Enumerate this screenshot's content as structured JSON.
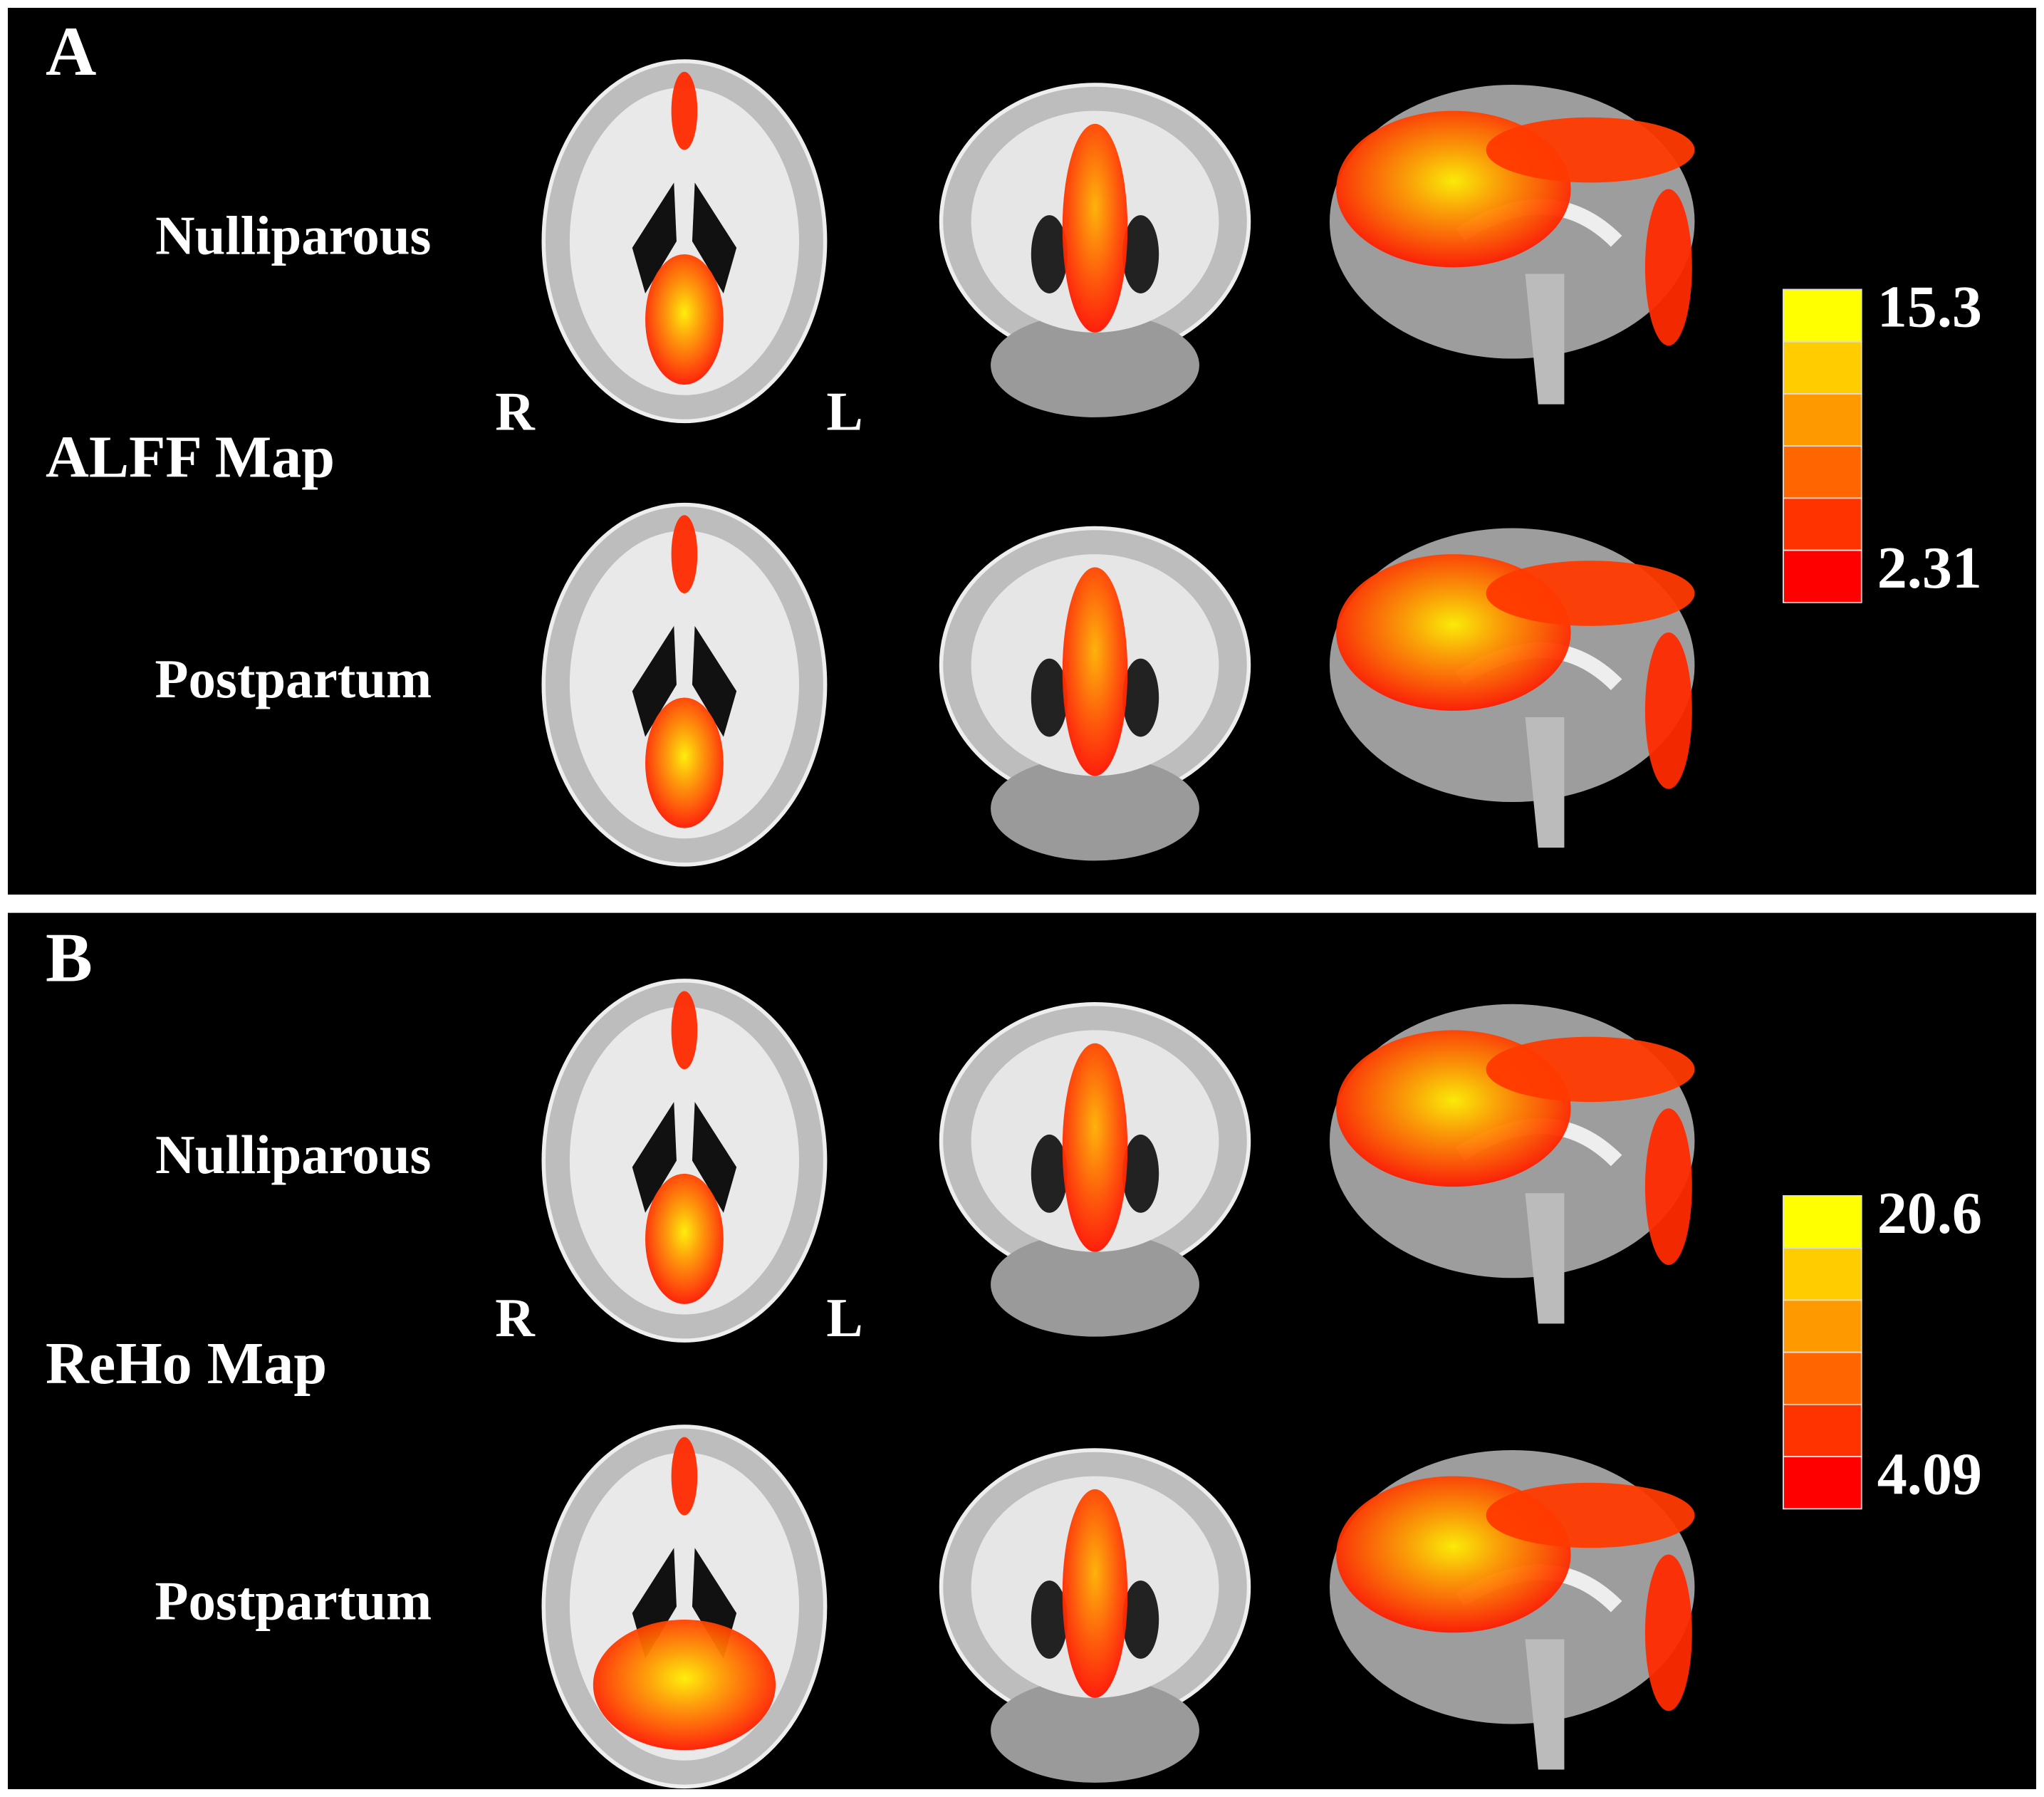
{
  "panels": [
    {
      "label": "A",
      "rows": [
        "Nulliparous",
        "Postpartum"
      ],
      "map_label": "ALFF Map",
      "orientation": [
        "R",
        "L"
      ],
      "colorbar": {
        "max": "15.3",
        "min": "2.31"
      }
    },
    {
      "label": "B",
      "rows": [
        "Nulliparous",
        "Postpartum"
      ],
      "map_label": "ReHo Map",
      "orientation": [
        "R",
        "L"
      ],
      "colorbar": {
        "max": "20.6",
        "min": "4.09"
      }
    }
  ]
}
